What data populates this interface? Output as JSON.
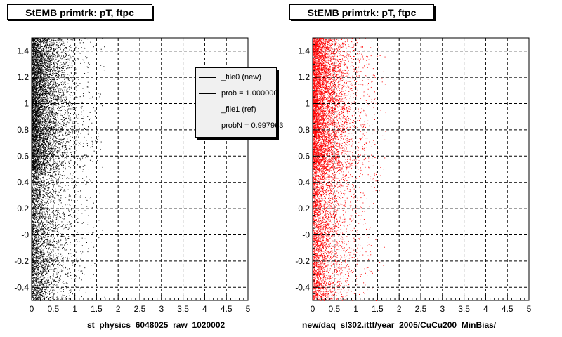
{
  "colors": {
    "black": "#000000",
    "red": "#ff0000",
    "grid": "#000000"
  },
  "panels": [
    {
      "id": "left",
      "title": "StEMB primtrk: pT, ftpc",
      "xlabel": "st_physics_6048025_raw_1020002",
      "color": "#000000",
      "legend": [
        {
          "label": "_file0 (new)",
          "color": "#000000"
        },
        {
          "label": "prob = 1.000000",
          "color": "#000000"
        },
        {
          "label": "_file1 (ref)",
          "color": "#ff0000"
        },
        {
          "label": "probN = 0.997963",
          "color": "#ff0000"
        }
      ]
    },
    {
      "id": "right",
      "title": "StEMB primtrk: pT, ftpc",
      "xlabel": "new/daq_sl302.ittf/year_2005/CuCu200_MinBias/",
      "color": "#ff0000"
    }
  ],
  "chart_data": [
    {
      "type": "scatter",
      "title": "StEMB primtrk: pT, ftpc",
      "xlabel": "st_physics_6048025_raw_1020002",
      "ylabel": "",
      "xlim": [
        0,
        5
      ],
      "ylim": [
        -0.5,
        1.5
      ],
      "xticks": [
        "0",
        "0.5",
        "1",
        "1.5",
        "2",
        "2.5",
        "3",
        "3.5",
        "4",
        "4.5",
        "5"
      ],
      "yticks": [
        "-0.4",
        "-0.2",
        "-0",
        "0.2",
        "0.4",
        "0.6",
        "0.8",
        "1",
        "1.2",
        "1.4"
      ],
      "grid": true,
      "legend_position": "top-right",
      "series": [
        {
          "name": "_file0 (new)",
          "color": "#000000",
          "distribution": "dense near x=0, decaying with x; y uniform in [-0.5, 1.5], denser for y between 0.5 and 1.5"
        }
      ]
    },
    {
      "type": "scatter",
      "title": "StEMB primtrk: pT, ftpc",
      "xlabel": "new/daq_sl302.ittf/year_2005/CuCu200_MinBias/",
      "ylabel": "",
      "xlim": [
        0,
        5
      ],
      "ylim": [
        -0.5,
        1.5
      ],
      "xticks": [
        "0",
        "0.5",
        "1",
        "1.5",
        "2",
        "2.5",
        "3",
        "3.5",
        "4",
        "4.5",
        "5"
      ],
      "yticks": [
        "-0.4",
        "-0.2",
        "-0",
        "0.2",
        "0.4",
        "0.6",
        "0.8",
        "1",
        "1.2",
        "1.4"
      ],
      "grid": true,
      "series": [
        {
          "name": "_file1 (ref)",
          "color": "#ff0000",
          "distribution": "dense near x=0, decaying with x; y uniform in [-0.5, 1.5], denser for y between 0.5 and 1.5"
        }
      ]
    }
  ]
}
